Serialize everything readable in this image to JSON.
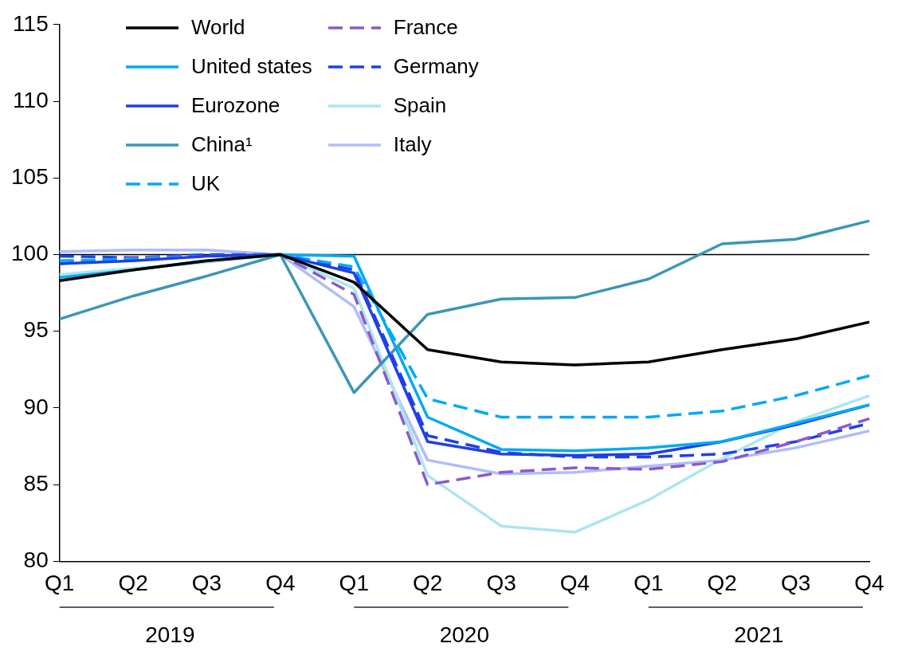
{
  "chart_data": {
    "type": "line",
    "categories": [
      "Q1",
      "Q2",
      "Q3",
      "Q4",
      "Q1",
      "Q2",
      "Q3",
      "Q4",
      "Q1",
      "Q2",
      "Q3",
      "Q4"
    ],
    "annotations": [
      "2019",
      "2020",
      "2021"
    ],
    "ylim": [
      80,
      115
    ],
    "yticks": [
      80,
      85,
      90,
      95,
      100,
      105,
      110,
      115
    ],
    "grid": false,
    "legend": "top left",
    "marker": "none",
    "ref_lines": [
      {
        "axis": "y",
        "value": 100,
        "label": null,
        "color": "#000000"
      }
    ],
    "series": [
      {
        "name": "World",
        "color": "#000000",
        "line_style": "solid",
        "values": [
          98.3,
          99.0,
          99.6,
          100,
          98.2,
          93.8,
          93.0,
          92.8,
          93.0,
          93.8,
          94.5,
          95.6
        ]
      },
      {
        "name": "United states",
        "color": "#00a9f4",
        "line_style": "solid",
        "values": [
          98.5,
          99.0,
          99.6,
          100,
          99.9,
          89.4,
          87.3,
          87.2,
          87.4,
          87.8,
          89.0,
          90.2
        ]
      },
      {
        "name": "Eurozone",
        "color": "#1f40e6",
        "line_style": "solid",
        "values": [
          99.4,
          99.6,
          99.9,
          100,
          98.8,
          87.8,
          87.0,
          86.9,
          87.0,
          87.8,
          88.9,
          90.2
        ]
      },
      {
        "name": "China¹",
        "color": "#3c96b4",
        "line_style": "solid",
        "values": [
          95.8,
          97.3,
          98.6,
          100,
          91.0,
          96.1,
          97.1,
          97.2,
          98.4,
          100.7,
          101.0,
          102.2
        ]
      },
      {
        "name": "UK",
        "color": "#00a9f4",
        "line_style": "dashed",
        "values": [
          99.6,
          99.7,
          99.9,
          100,
          99.2,
          90.6,
          89.4,
          89.4,
          89.4,
          89.8,
          90.8,
          92.1
        ]
      },
      {
        "name": "France",
        "color": "#8c5ac8",
        "line_style": "dashed",
        "values": [
          99.4,
          99.8,
          99.9,
          100,
          97.4,
          85.0,
          85.8,
          86.1,
          86.0,
          86.5,
          87.8,
          89.3
        ]
      },
      {
        "name": "Germany",
        "color": "#1f40e6",
        "line_style": "dashed",
        "values": [
          99.9,
          99.8,
          100.0,
          100,
          99.0,
          88.2,
          87.1,
          86.8,
          86.8,
          87.0,
          87.8,
          89.0
        ]
      },
      {
        "name": "Spain",
        "color": "#aae6f0",
        "line_style": "solid",
        "values": [
          98.7,
          99.1,
          99.5,
          100,
          97.8,
          85.6,
          82.3,
          81.9,
          84.0,
          86.7,
          89.1,
          90.8
        ]
      },
      {
        "name": "Italy",
        "color": "#afbdfa",
        "line_style": "solid",
        "values": [
          100.2,
          100.3,
          100.3,
          100,
          96.6,
          86.6,
          85.7,
          85.8,
          86.2,
          86.6,
          87.4,
          88.5
        ]
      }
    ]
  }
}
